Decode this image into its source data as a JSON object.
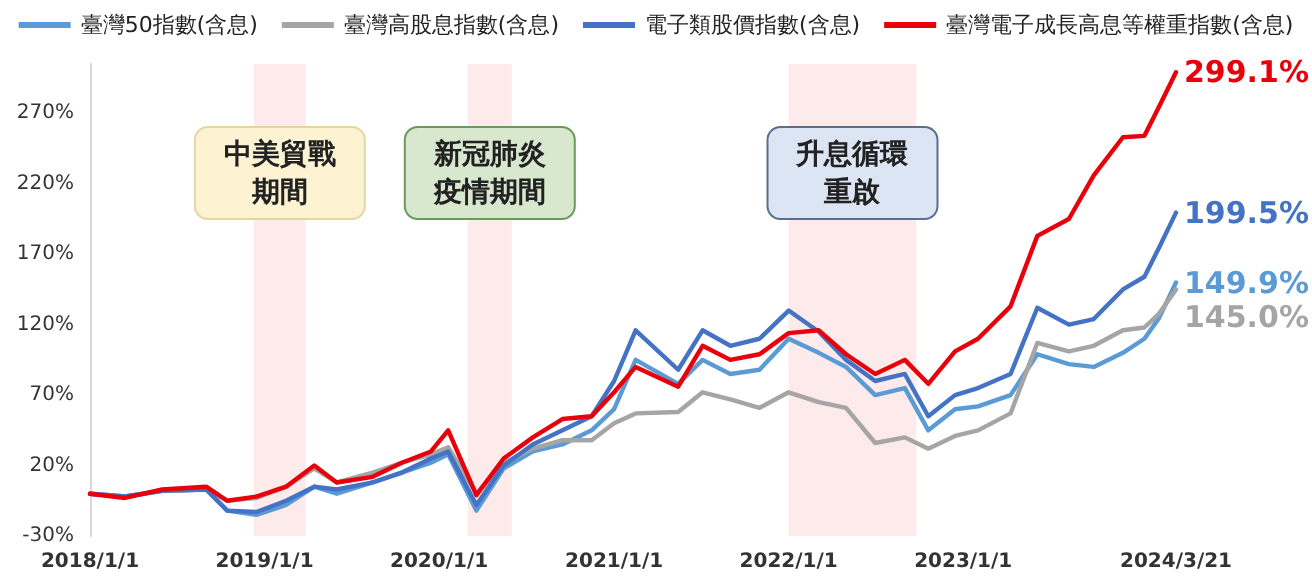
{
  "chart_data": {
    "type": "line",
    "x": [
      "2018-01-01",
      "2018-03-15",
      "2018-06-01",
      "2018-09-01",
      "2018-10-15",
      "2018-12-15",
      "2019-02-15",
      "2019-04-15",
      "2019-06-01",
      "2019-08-15",
      "2019-10-15",
      "2019-12-15",
      "2020-01-20",
      "2020-03-19",
      "2020-05-15",
      "2020-07-15",
      "2020-09-15",
      "2020-11-15",
      "2021-01-01",
      "2021-02-15",
      "2021-05-15",
      "2021-07-05",
      "2021-09-01",
      "2021-11-01",
      "2022-01-01",
      "2022-03-05",
      "2022-05-01",
      "2022-07-01",
      "2022-09-01",
      "2022-10-20",
      "2022-12-15",
      "2023-02-01",
      "2023-04-10",
      "2023-06-05",
      "2023-08-10",
      "2023-10-01",
      "2023-12-01",
      "2024-01-15",
      "2024-02-15",
      "2024-03-21"
    ],
    "series": [
      {
        "name": "臺灣50指數(含息)",
        "color": "#5b9bd5",
        "values": [
          0,
          -2,
          2,
          3,
          -12,
          -15,
          -8,
          5,
          0,
          8,
          15,
          22,
          28,
          -12,
          18,
          30,
          35,
          45,
          60,
          95,
          78,
          95,
          85,
          88,
          110,
          100,
          90,
          70,
          75,
          45,
          60,
          62,
          70,
          99,
          92,
          90,
          100,
          110,
          125,
          149.9
        ],
        "value_labels": [
          null,
          null,
          null,
          null,
          null,
          null,
          null,
          null,
          null,
          null,
          null,
          null,
          null,
          null,
          null,
          null,
          null,
          null,
          null,
          null,
          null,
          null,
          null,
          null,
          null,
          null,
          null,
          null,
          null,
          null,
          null,
          null,
          null,
          null,
          null,
          null,
          null,
          null,
          null,
          "149.9%"
        ]
      },
      {
        "name": "臺灣高股息指數(含息)",
        "color": "#a5a5a5",
        "values": [
          0,
          -2,
          2,
          3,
          -5,
          -3,
          5,
          18,
          8,
          15,
          22,
          28,
          33,
          0,
          22,
          32,
          38,
          38,
          50,
          57,
          58,
          72,
          67,
          61,
          72,
          65,
          61,
          36,
          40,
          32,
          41,
          45,
          57,
          107,
          101,
          105,
          116,
          118,
          128,
          145.0
        ],
        "value_labels": [
          null,
          null,
          null,
          null,
          null,
          null,
          null,
          null,
          null,
          null,
          null,
          null,
          null,
          null,
          null,
          null,
          null,
          null,
          null,
          null,
          null,
          null,
          null,
          null,
          null,
          null,
          null,
          null,
          null,
          null,
          null,
          null,
          null,
          null,
          null,
          null,
          null,
          null,
          null,
          "145.0%"
        ]
      },
      {
        "name": "電子類股價指數(含息)",
        "color": "#4472c4",
        "values": [
          0,
          -2,
          2,
          3,
          -12,
          -13,
          -5,
          5,
          3,
          8,
          15,
          25,
          30,
          -8,
          20,
          35,
          45,
          55,
          80,
          116,
          88,
          116,
          105,
          110,
          130,
          115,
          95,
          80,
          85,
          55,
          70,
          75,
          85,
          132,
          120,
          124,
          145,
          154,
          175,
          199.5
        ],
        "value_labels": [
          null,
          null,
          null,
          null,
          null,
          null,
          null,
          null,
          null,
          null,
          null,
          null,
          null,
          null,
          null,
          null,
          null,
          null,
          null,
          null,
          null,
          null,
          null,
          null,
          null,
          null,
          null,
          null,
          null,
          null,
          null,
          null,
          null,
          null,
          null,
          null,
          null,
          null,
          null,
          "199.5%"
        ]
      },
      {
        "name": "臺灣電子成長高息等權重指數(含息)",
        "color": "#e8000b",
        "values": [
          0,
          -3,
          3,
          5,
          -5,
          -2,
          5,
          20,
          8,
          12,
          22,
          30,
          45,
          -1,
          25,
          40,
          53,
          55,
          72,
          90,
          76,
          105,
          95,
          99,
          114,
          116,
          99,
          85,
          95,
          78,
          101,
          110,
          133,
          183,
          195,
          226,
          253,
          254,
          275,
          299.1
        ],
        "value_labels": [
          null,
          null,
          null,
          null,
          null,
          null,
          null,
          null,
          null,
          null,
          null,
          null,
          null,
          null,
          null,
          null,
          null,
          null,
          null,
          null,
          null,
          null,
          null,
          null,
          null,
          null,
          null,
          null,
          null,
          null,
          null,
          null,
          null,
          null,
          null,
          null,
          null,
          null,
          null,
          "299.1%"
        ]
      }
    ],
    "xlim": [
      "2018-01-01",
      "2024-03-21"
    ],
    "xticks": [
      {
        "value": "2018-01-01",
        "label": "2018/1/1"
      },
      {
        "value": "2019-01-01",
        "label": "2019/1/1"
      },
      {
        "value": "2020-01-01",
        "label": "2020/1/1"
      },
      {
        "value": "2021-01-01",
        "label": "2021/1/1"
      },
      {
        "value": "2022-01-01",
        "label": "2022/1/1"
      },
      {
        "value": "2023-01-01",
        "label": "2023/1/1"
      },
      {
        "value": "2024-03-21",
        "label": "2024/3/21"
      }
    ],
    "ylim": [
      -30,
      305
    ],
    "yticks": [
      {
        "value": -30,
        "label": "-30%"
      },
      {
        "value": 20,
        "label": "20%"
      },
      {
        "value": 70,
        "label": "70%"
      },
      {
        "value": 120,
        "label": "120%"
      },
      {
        "value": 170,
        "label": "170%"
      },
      {
        "value": 220,
        "label": "220%"
      },
      {
        "value": 270,
        "label": "270%"
      }
    ],
    "bands": [
      {
        "axis": "x",
        "from": "2018-12-10",
        "to": "2019-03-28",
        "label": "中美貿戰期間",
        "color": "#fdeaea"
      },
      {
        "axis": "x",
        "from": "2020-03-01",
        "to": "2020-06-01",
        "label": "新冠肺炎疫情期間",
        "color": "#fdeaea"
      },
      {
        "axis": "x",
        "from": "2022-01-01",
        "to": "2022-09-25",
        "label": "升息循環重啟",
        "color": "#fdeaea"
      }
    ],
    "legend": "top"
  }
}
